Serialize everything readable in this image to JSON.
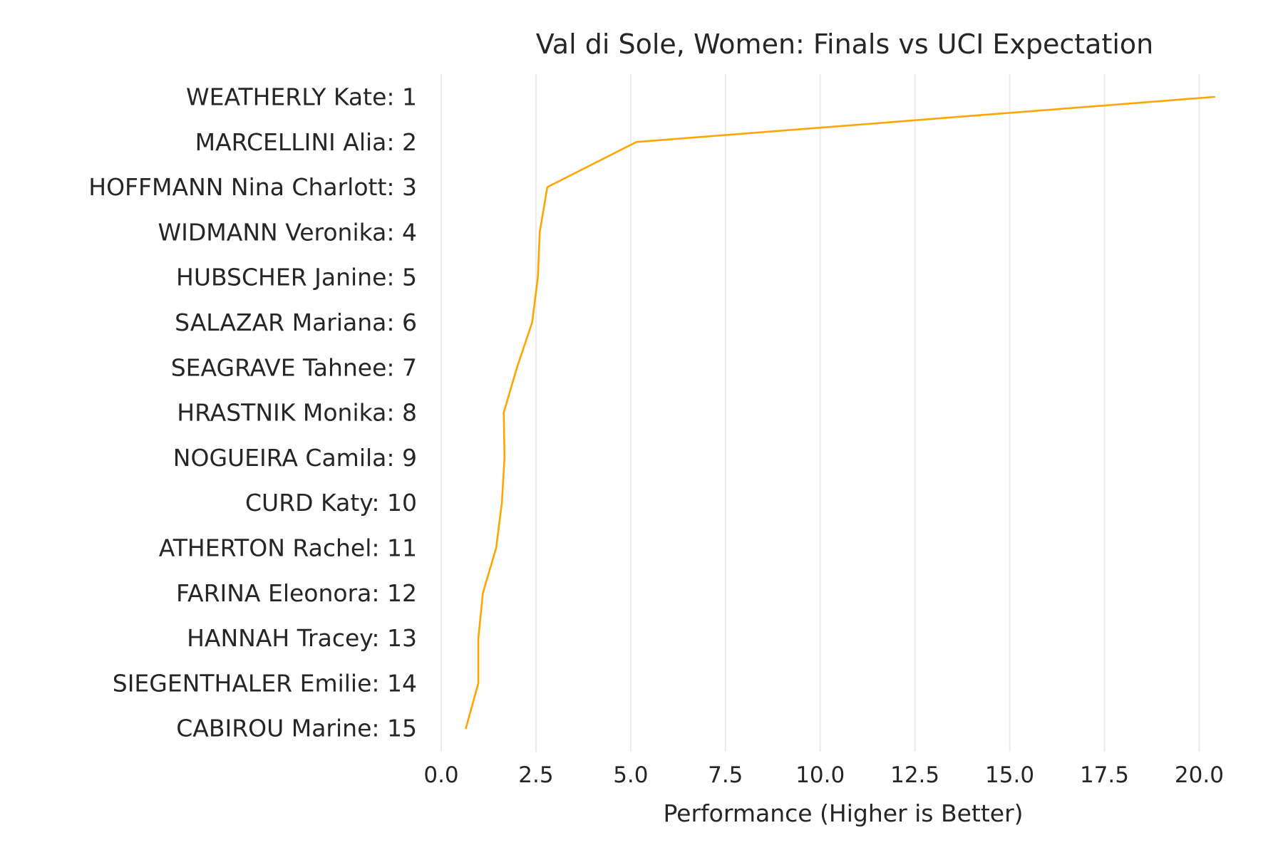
{
  "chart_data": {
    "type": "line",
    "orientation": "horizontal",
    "title": "Val di Sole, Women: Finals vs UCI Expectation",
    "xlabel": "Performance (Higher is Better)",
    "ylabel": "",
    "xlim": [
      0.0,
      20.5
    ],
    "xticks": [
      0.0,
      2.5,
      5.0,
      7.5,
      10.0,
      12.5,
      15.0,
      17.5,
      20.0
    ],
    "xtick_labels": [
      "0.0",
      "2.5",
      "5.0",
      "7.5",
      "10.0",
      "12.5",
      "15.0",
      "17.5",
      "20.0"
    ],
    "grid": "vertical",
    "legend": "none",
    "categories": [
      "WEATHERLY Kate: 1",
      "MARCELLINI Alia: 2",
      "HOFFMANN Nina Charlott: 3",
      "WIDMANN Veronika: 4",
      "HUBSCHER Janine: 5",
      "SALAZAR Mariana: 6",
      "SEAGRAVE Tahnee: 7",
      "HRASTNIK Monika: 8",
      "NOGUEIRA Camila: 9",
      "CURD Katy: 10",
      "ATHERTON Rachel: 11",
      "FARINA Eleonora: 12",
      "HANNAH Tracey: 13",
      "SIEGENTHALER Emilie: 14",
      "CABIROU Marine: 15"
    ],
    "series": [
      {
        "color": "#ffa500",
        "values": [
          20.4,
          5.15,
          2.8,
          2.6,
          2.55,
          2.4,
          2.0,
          1.65,
          1.67,
          1.6,
          1.45,
          1.1,
          0.98,
          0.98,
          0.65
        ]
      }
    ]
  }
}
